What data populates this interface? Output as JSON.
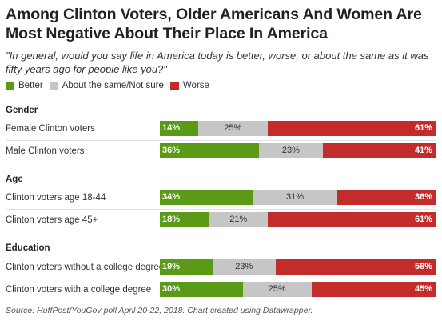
{
  "title": "Among Clinton Voters, Older Americans And Women Are Most Negative About Their Place In America",
  "subtitle": "\"In general, would you say life in America today is better, worse, or about the same as it was fifty years ago for people like you?\"",
  "source": "Source: HuffPost/YouGov poll April 20-22, 2018. Chart created using Datawrapper.",
  "colors": {
    "better": "#5a9a16",
    "same": "#c6c6c6",
    "worse": "#c42b2b"
  },
  "chart_data": {
    "type": "bar",
    "stacked": true,
    "orientation": "horizontal",
    "legend_position": "top-left",
    "legend": [
      "Better",
      "About the same/Not sure",
      "Worse"
    ],
    "groups": [
      {
        "label": "Gender",
        "rows": [
          {
            "label": "Female Clinton voters",
            "values": [
              14,
              25,
              61
            ],
            "value_labels": [
              "14%",
              "25%",
              "61%"
            ]
          },
          {
            "label": "Male Clinton voters",
            "values": [
              36,
              23,
              41
            ],
            "value_labels": [
              "36%",
              "23%",
              "41%"
            ]
          }
        ]
      },
      {
        "label": "Age",
        "rows": [
          {
            "label": "Clinton voters age 18-44",
            "values": [
              34,
              31,
              36
            ],
            "value_labels": [
              "34%",
              "31%",
              "36%"
            ]
          },
          {
            "label": "Clinton voters age 45+",
            "values": [
              18,
              21,
              61
            ],
            "value_labels": [
              "18%",
              "21%",
              "61%"
            ]
          }
        ]
      },
      {
        "label": "Education",
        "rows": [
          {
            "label": "Clinton voters without a college degree",
            "values": [
              19,
              23,
              58
            ],
            "value_labels": [
              "19%",
              "23%",
              "58%"
            ]
          },
          {
            "label": "Clinton voters with a college degree",
            "values": [
              30,
              25,
              45
            ],
            "value_labels": [
              "30%",
              "25%",
              "45%"
            ]
          }
        ]
      }
    ]
  }
}
